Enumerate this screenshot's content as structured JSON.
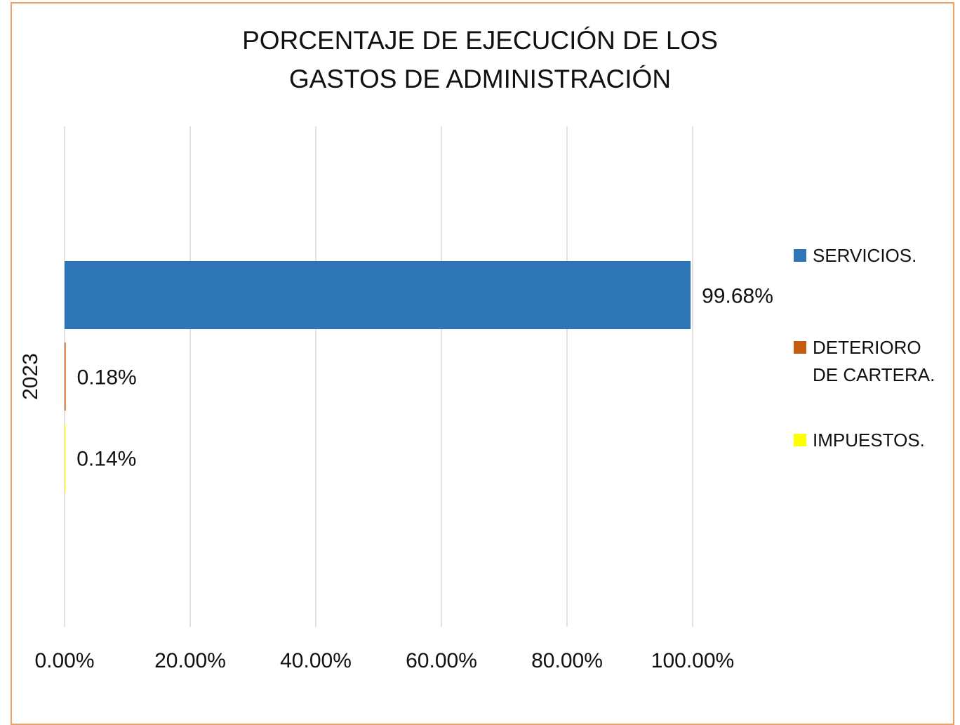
{
  "chart_data": {
    "type": "hbar",
    "title": "PORCENTAJE DE EJECUCIÓN DE LOS GASTOS DE ADMINISTRACIÓN",
    "categories": [
      "2023"
    ],
    "series": [
      {
        "name": "SERVICIOS.",
        "color": "#2e75b6",
        "values": [
          99.68
        ],
        "value_labels": [
          "99.68%"
        ]
      },
      {
        "name": "DETERIORO DE CARTERA.",
        "color": "#c55a11",
        "values": [
          0.18
        ],
        "value_labels": [
          "0.18%"
        ]
      },
      {
        "name": "IMPUESTOS.",
        "color": "#ffff00",
        "values": [
          0.14
        ],
        "value_labels": [
          "0.14%"
        ]
      }
    ],
    "xlim": [
      0,
      100
    ],
    "xticks": [
      {
        "value": 0,
        "label": "0.00%"
      },
      {
        "value": 20,
        "label": "20.00%"
      },
      {
        "value": 40,
        "label": "40.00%"
      },
      {
        "value": 60,
        "label": "60.00%"
      },
      {
        "value": 80,
        "label": "80.00%"
      },
      {
        "value": 100,
        "label": "100.00%"
      }
    ],
    "grid": true,
    "legend": "right"
  }
}
